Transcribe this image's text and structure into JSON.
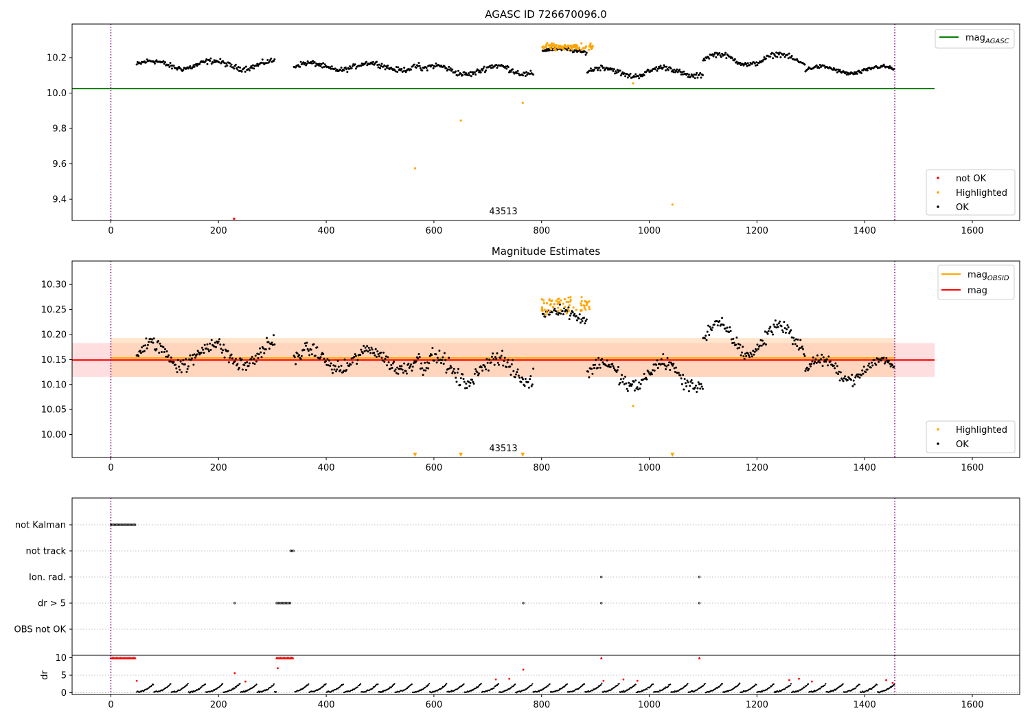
{
  "chart_data": [
    {
      "type": "scatter",
      "title": "AGASC ID 726670096.0",
      "xlim": [
        -72,
        1688
      ],
      "ylim": [
        9.28,
        10.39
      ],
      "xticks": [
        0,
        200,
        400,
        600,
        800,
        1000,
        1200,
        1400,
        1600
      ],
      "yticks": [
        9.4,
        9.6,
        9.8,
        10.0,
        10.2
      ],
      "ytick_labels": [
        "9.4",
        "9.6",
        "9.8",
        "10.0",
        "10.2"
      ],
      "vlines": [
        0,
        1456
      ],
      "hlines": [
        {
          "name": "mag_AGASC",
          "y": 10.025,
          "x": [
            -72,
            1530
          ],
          "color": "#008000"
        }
      ],
      "annotation": {
        "text": "43513",
        "x": 727,
        "y": 9.31
      },
      "legend_lines": [
        {
          "label": "mag",
          "sub": "AGASC",
          "color": "#008000"
        }
      ],
      "legend_points": [
        {
          "label": "not OK",
          "color": "#ff0000"
        },
        {
          "label": "Highlighted",
          "color": "#ffa500"
        },
        {
          "label": "OK",
          "color": "#000000"
        }
      ],
      "segments": [
        {
          "x0": 48,
          "x1": 305,
          "y": 10.16,
          "amp": 0.022,
          "noise": 0.022
        },
        {
          "x0": 340,
          "x1": 575,
          "y": 10.15,
          "amp": 0.02,
          "noise": 0.02
        },
        {
          "x0": 575,
          "x1": 785,
          "y": 10.13,
          "amp": 0.025,
          "noise": 0.023
        },
        {
          "x0": 802,
          "x1": 885,
          "y": 10.24,
          "amp": 0.01,
          "noise": 0.015
        },
        {
          "x0": 885,
          "x1": 1100,
          "y": 10.12,
          "amp": 0.025,
          "noise": 0.022
        },
        {
          "x0": 1100,
          "x1": 1290,
          "y": 10.19,
          "amp": 0.03,
          "noise": 0.02
        },
        {
          "x0": 1290,
          "x1": 1456,
          "y": 10.13,
          "amp": 0.02,
          "noise": 0.015
        }
      ],
      "highlighted": [
        {
          "x0": 800,
          "x1": 895,
          "y": 10.26,
          "noise": 0.02,
          "n": 95
        },
        {
          "x": 565,
          "y": 9.575
        },
        {
          "x": 650,
          "y": 9.845
        },
        {
          "x": 765,
          "y": 9.945
        },
        {
          "x": 970,
          "y": 10.055
        },
        {
          "x": 1043,
          "y": 9.37
        }
      ],
      "not_ok": [
        {
          "x": 229,
          "y": 9.29
        }
      ]
    },
    {
      "type": "scatter",
      "title": "Magnitude Estimates",
      "xlim": [
        -72,
        1688
      ],
      "ylim": [
        9.954,
        10.347
      ],
      "xticks": [
        0,
        200,
        400,
        600,
        800,
        1000,
        1200,
        1400,
        1600
      ],
      "yticks": [
        10.0,
        10.05,
        10.1,
        10.15,
        10.2,
        10.25,
        10.3
      ],
      "ytick_labels": [
        "10.00",
        "10.05",
        "10.10",
        "10.15",
        "10.20",
        "10.25",
        "10.30"
      ],
      "vlines": [
        0,
        1456
      ],
      "bands": [
        {
          "y0": 10.115,
          "y1": 10.183,
          "x": [
            -72,
            1530
          ],
          "color": "#ffc8cc",
          "opacity": 0.6
        },
        {
          "y0": 10.115,
          "y1": 10.193,
          "x": [
            0,
            1456
          ],
          "color": "#ffcc99",
          "opacity": 0.5
        }
      ],
      "hlines": [
        {
          "name": "mag_OBSID",
          "y": 10.153,
          "x": [
            0,
            1456
          ],
          "color": "#ffa500"
        },
        {
          "name": "mag",
          "y": 10.149,
          "x": [
            -72,
            1530
          ],
          "color": "#ff0000"
        }
      ],
      "annotation": {
        "text": "43513",
        "x": 727,
        "y": 9.96
      },
      "legend_lines": [
        {
          "label": "mag",
          "sub": "OBSID",
          "color": "#ffa500"
        },
        {
          "label": "mag",
          "sub": "",
          "color": "#ff0000"
        }
      ],
      "legend_points": [
        {
          "label": "Highlighted",
          "color": "#ffa500"
        },
        {
          "label": "OK",
          "color": "#000000"
        }
      ],
      "segments": [
        {
          "x0": 48,
          "x1": 305,
          "y": 10.16,
          "amp": 0.022,
          "noise": 0.022
        },
        {
          "x0": 340,
          "x1": 575,
          "y": 10.15,
          "amp": 0.02,
          "noise": 0.02
        },
        {
          "x0": 575,
          "x1": 785,
          "y": 10.13,
          "amp": 0.025,
          "noise": 0.023
        },
        {
          "x0": 802,
          "x1": 885,
          "y": 10.24,
          "amp": 0.01,
          "noise": 0.015
        },
        {
          "x0": 885,
          "x1": 1100,
          "y": 10.12,
          "amp": 0.025,
          "noise": 0.022
        },
        {
          "x0": 1100,
          "x1": 1290,
          "y": 10.19,
          "amp": 0.03,
          "noise": 0.02
        },
        {
          "x0": 1290,
          "x1": 1456,
          "y": 10.13,
          "amp": 0.02,
          "noise": 0.015
        }
      ],
      "highlighted": [
        {
          "x0": 800,
          "x1": 890,
          "y": 10.26,
          "noise": 0.02,
          "n": 70
        },
        {
          "x": 970,
          "y": 10.057
        }
      ],
      "out_of_range_markers": [
        565,
        650,
        765,
        1043
      ]
    },
    {
      "type": "scatter",
      "title": "",
      "xlim": [
        -72,
        1688
      ],
      "categories": [
        "not Kalman",
        "not track",
        "Ion. rad.",
        "dr > 5",
        "OBS not OK"
      ],
      "vlines": [
        0,
        1456
      ],
      "flag_points": {
        "not Kalman": [
          [
            0,
            46
          ]
        ],
        "not track": [
          [
            334,
            341
          ]
        ],
        "Ion. rad.": [
          [
            911,
            911
          ],
          [
            1093,
            1093
          ]
        ],
        "dr > 5": [
          [
            230,
            230
          ],
          [
            308,
            334
          ],
          [
            766,
            766
          ],
          [
            911,
            911
          ],
          [
            1093,
            1093
          ]
        ],
        "OBS not OK": []
      }
    },
    {
      "type": "scatter",
      "title": "",
      "xlim": [
        -72,
        1688
      ],
      "ylim": [
        -0.5,
        10.7
      ],
      "yticks": [
        0,
        5,
        10
      ],
      "ytick_labels": [
        "0",
        "5",
        "10"
      ],
      "ylabel": "dr",
      "vlines": [
        0,
        1456
      ],
      "clipped_red": [
        [
          0,
          46
        ],
        [
          308,
          340
        ],
        [
          911,
          911
        ],
        [
          1093,
          1093
        ]
      ],
      "red_points": [
        {
          "x": 230,
          "y": 5.6
        },
        {
          "x": 310,
          "y": 7.0
        },
        {
          "x": 766,
          "y": 6.6
        },
        {
          "x": 48,
          "y": 3.4
        },
        {
          "x": 250,
          "y": 3.2
        },
        {
          "x": 715,
          "y": 3.8
        },
        {
          "x": 740,
          "y": 4.0
        },
        {
          "x": 915,
          "y": 3.4
        },
        {
          "x": 952,
          "y": 3.8
        },
        {
          "x": 978,
          "y": 3.4
        },
        {
          "x": 1260,
          "y": 3.6
        },
        {
          "x": 1278,
          "y": 4.0
        },
        {
          "x": 1302,
          "y": 3.2
        },
        {
          "x": 1440,
          "y": 3.6
        },
        {
          "x": 1452,
          "y": 2.8
        }
      ],
      "black_range": [
        48,
        1456
      ]
    }
  ]
}
